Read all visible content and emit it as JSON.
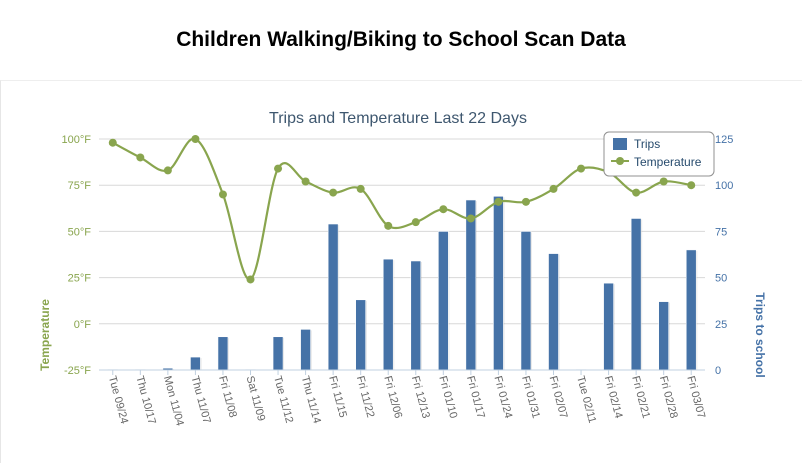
{
  "page": {
    "title": "Children Walking/Biking to School Scan Data"
  },
  "chart_data": {
    "type": "bar",
    "title": "Trips and Temperature Last 22 Days",
    "categories": [
      "Tue 09/24",
      "Thu 10/17",
      "Mon 11/04",
      "Thu 11/07",
      "Fri 11/08",
      "Sat 11/09",
      "Tue 11/12",
      "Thu 11/14",
      "Fri 11/15",
      "Fri 11/22",
      "Fri 12/06",
      "Fri 12/13",
      "Fri 01/10",
      "Fri 01/17",
      "Fri 01/24",
      "Fri 01/31",
      "Fri 02/07",
      "Tue 02/11",
      "Fri 02/14",
      "Fri 02/21",
      "Fri 02/28",
      "Fri 03/07"
    ],
    "left_axis": {
      "label": "Temperature",
      "ticks": [
        "-25°F",
        "0°F",
        "25°F",
        "50°F",
        "75°F",
        "100°F"
      ],
      "min": -25,
      "max": 100,
      "color": "#89a54e"
    },
    "right_axis": {
      "label": "Trips to school",
      "ticks": [
        "0",
        "25",
        "50",
        "75",
        "100",
        "125"
      ],
      "min": 0,
      "max": 125,
      "color": "#4572a7"
    },
    "grid": true,
    "legend": {
      "placement": "top-right"
    },
    "series": [
      {
        "name": "Trips",
        "type": "bar",
        "axis": "right",
        "color": "#4572a7",
        "values": [
          0,
          0,
          1,
          7,
          18,
          0,
          18,
          22,
          79,
          38,
          60,
          59,
          75,
          92,
          94,
          75,
          63,
          0,
          47,
          82,
          37,
          65
        ]
      },
      {
        "name": "Temperature",
        "type": "line",
        "axis": "left",
        "color": "#89a54e",
        "values": [
          98,
          90,
          83,
          100,
          70,
          24,
          84,
          77,
          71,
          73,
          53,
          55,
          62,
          57,
          66,
          66,
          73,
          84,
          82,
          71,
          77,
          75
        ]
      }
    ]
  }
}
